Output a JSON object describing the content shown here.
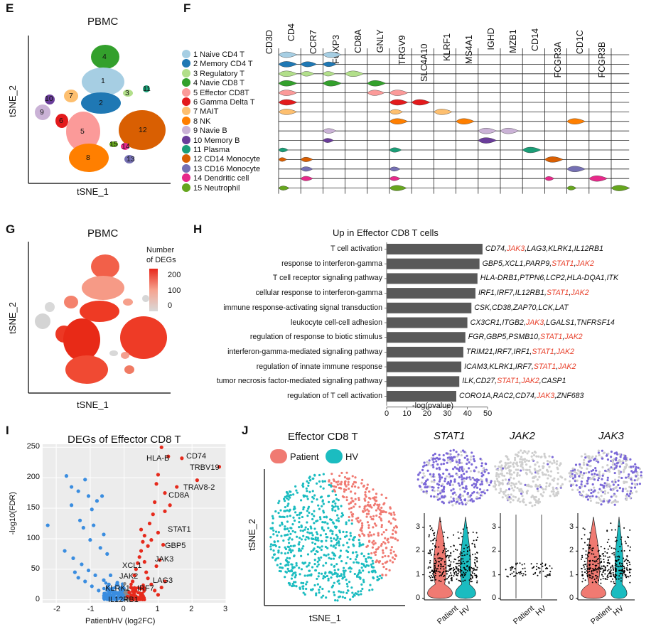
{
  "panel_labels": {
    "E": "E",
    "F": "F",
    "G": "G",
    "H": "H",
    "I": "I",
    "J": "J"
  },
  "E": {
    "title": "PBMC",
    "xlabel": "tSNE_1",
    "ylabel": "tSNE_2",
    "cluster_numbers": [
      "1",
      "2",
      "3",
      "4",
      "5",
      "6",
      "7",
      "8",
      "9",
      "10",
      "11",
      "12",
      "13",
      "14",
      "15"
    ]
  },
  "F": {
    "genes": [
      "CD3D",
      "CD4",
      "CCR7",
      "FOXP3",
      "CD8A",
      "GNLY",
      "TRGV9",
      "SLC4A10",
      "KLRF1",
      "MS4A1",
      "IGHD",
      "MZB1",
      "CD14",
      "FCGR3A",
      "CD1C",
      "FCGR3B"
    ],
    "legend": [
      {
        "label": "1 Naive CD4 T",
        "color": "#a6cee3"
      },
      {
        "label": "2 Memory CD4 T",
        "color": "#1f78b4"
      },
      {
        "label": "3 Regulatory T",
        "color": "#b2df8a"
      },
      {
        "label": "4 Navie CD8 T",
        "color": "#33a02c"
      },
      {
        "label": "5 Effector CD8T",
        "color": "#fb9a99"
      },
      {
        "label": "6 Gamma Delta T",
        "color": "#e31a1c"
      },
      {
        "label": "7 MAIT",
        "color": "#fdbf6f"
      },
      {
        "label": "8 NK",
        "color": "#ff7f00"
      },
      {
        "label": "9 Navie B",
        "color": "#cab2d6"
      },
      {
        "label": "10 Memory B",
        "color": "#6a3d9a"
      },
      {
        "label": "11 Plasma",
        "color": "#1b9e77"
      },
      {
        "label": "12 CD14 Monocyte",
        "color": "#d95f02"
      },
      {
        "label": "13 CD16 Monocyte",
        "color": "#7570b3"
      },
      {
        "label": "14 Dendritic cell",
        "color": "#e7298a"
      },
      {
        "label": "15 Neutrophil",
        "color": "#66a61e"
      }
    ]
  },
  "G": {
    "title": "PBMC",
    "legend_title_1": "Number",
    "legend_title_2": "of DEGs",
    "legend_ticks": [
      "200",
      "100",
      "0"
    ],
    "xlabel": "tSNE_1",
    "ylabel": "tSNE_2"
  },
  "H": {
    "title": "Up in Effector CD8 T cells",
    "xlabel": "-log(pvalue)",
    "xticks": [
      "0",
      "10",
      "20",
      "30",
      "40",
      "50"
    ],
    "rows": [
      {
        "term": "T cell activation",
        "value": 47.5,
        "genes": [
          [
            "CD74,",
            0
          ],
          [
            "JAK3",
            1
          ],
          [
            ",LAG3,KLRK1,IL12RB1",
            0
          ]
        ]
      },
      {
        "term": "response to interferon-gamma",
        "value": 46,
        "genes": [
          [
            "GBP5,XCL1,PARP9,",
            0
          ],
          [
            "STAT1",
            1
          ],
          [
            ",",
            0
          ],
          [
            "JAK2",
            1
          ]
        ]
      },
      {
        "term": "T cell receptor signaling pathway",
        "value": 45,
        "genes": [
          [
            "HLA-DRB1,PTPN6,LCP2,HLA-DQA1,ITK",
            0
          ]
        ]
      },
      {
        "term": "cellular response to interferon-gamma",
        "value": 44,
        "genes": [
          [
            "IRF1,IRF7,IL12RB1,",
            0
          ],
          [
            "STAT1",
            1
          ],
          [
            ",",
            0
          ],
          [
            "JAK2",
            1
          ]
        ]
      },
      {
        "term": "immune response-activating signal transduction",
        "value": 42,
        "genes": [
          [
            "CSK,CD38,ZAP70,LCK,LAT",
            0
          ]
        ]
      },
      {
        "term": "leukocyte cell-cell adhesion",
        "value": 40,
        "genes": [
          [
            "CX3CR1,ITGB2,",
            0
          ],
          [
            "JAK3",
            1
          ],
          [
            ",LGALS1,TNFRSF14",
            0
          ]
        ]
      },
      {
        "term": "regulation of response to biotic stimulus",
        "value": 39,
        "genes": [
          [
            "FGR,GBP5,PSMB10,",
            0
          ],
          [
            "STAT1",
            1
          ],
          [
            ",",
            0
          ],
          [
            "JAK2",
            1
          ]
        ]
      },
      {
        "term": "interferon-gamma-mediated signaling pathway",
        "value": 38,
        "genes": [
          [
            "TRIM21,IRF7,IRF1,",
            0
          ],
          [
            "STAT1",
            1
          ],
          [
            ",",
            0
          ],
          [
            "JAK2",
            1
          ]
        ]
      },
      {
        "term": "regulation of innate immune response",
        "value": 37,
        "genes": [
          [
            "ICAM3,KLRK1,IRF7,",
            0
          ],
          [
            "STAT1",
            1
          ],
          [
            ",",
            0
          ],
          [
            "JAK2",
            1
          ]
        ]
      },
      {
        "term": "tumor necrosis factor-mediated signaling pathway",
        "value": 36,
        "genes": [
          [
            "ILK,CD27,",
            0
          ],
          [
            "STAT1",
            1
          ],
          [
            ",",
            0
          ],
          [
            "JAK2",
            1
          ],
          [
            ",CASP1",
            0
          ]
        ]
      },
      {
        "term": "regulation of T cell activation",
        "value": 34.5,
        "genes": [
          [
            "CORO1A,RAC2,CD74,",
            0
          ],
          [
            "JAK3",
            1
          ],
          [
            ",ZNF683",
            0
          ]
        ]
      }
    ]
  },
  "I": {
    "title": "DEGs of Effector CD8 T",
    "xlabel": "Patient/HV (log2FC)",
    "ylabel": "-log10(FDR)",
    "xticks": [
      "-2",
      "-1",
      "0",
      "1",
      "2",
      "3"
    ],
    "yticks": [
      "0",
      "50",
      "100",
      "150",
      "200",
      "250"
    ],
    "gene_labels": [
      "HLA-B",
      "CD74",
      "TRBV19",
      "TRAV8-2",
      "CD8A",
      "STAT1",
      "GBP5",
      "JAK3",
      "XCL1",
      "LAG3",
      "JAK2",
      "KLRK1",
      "IRF7",
      "IL12RB1"
    ]
  },
  "J": {
    "title": "Effector CD8 T",
    "legend": [
      {
        "label": "Patient",
        "color": "#f07a72"
      },
      {
        "label": "HV",
        "color": "#1bbcc0"
      }
    ],
    "xlabel": "tSNE_1",
    "ylabel": "tSNE_2",
    "genes": [
      "STAT1",
      "JAK2",
      "JAK3"
    ],
    "violin_x": [
      "Patient",
      "HV"
    ],
    "violin_yticks": [
      "0",
      "1",
      "2",
      "3"
    ]
  },
  "chart_data": [
    {
      "type": "bar",
      "title": "Up in Effector CD8 T cells",
      "xlabel": "-log(pvalue)",
      "xlim": [
        0,
        50
      ],
      "categories": [
        "T cell activation",
        "response to interferon-gamma",
        "T cell receptor signaling pathway",
        "cellular response to interferon-gamma",
        "immune response-activating signal transduction",
        "leukocyte cell-cell adhesion",
        "regulation of response to biotic stimulus",
        "interferon-gamma-mediated signaling pathway",
        "regulation of innate immune response",
        "tumor necrosis factor-mediated signaling pathway",
        "regulation of T cell activation"
      ],
      "values": [
        47.5,
        46,
        45,
        44,
        42,
        40,
        39,
        38,
        37,
        36,
        34.5
      ]
    },
    {
      "type": "scatter",
      "title": "DEGs of Effector CD8 T",
      "xlabel": "Patient/HV (log2FC)",
      "ylabel": "-log10(FDR)",
      "xlim": [
        -2.4,
        3
      ],
      "ylim": [
        -5,
        255
      ],
      "series": [
        {
          "name": "down",
          "color": "#3a8de0",
          "points": [
            [
              -2.25,
              122
            ],
            [
              -1.7,
              203
            ],
            [
              -1.55,
              185
            ],
            [
              -1.35,
              178
            ],
            [
              -1.15,
              197
            ],
            [
              -1.05,
              170
            ],
            [
              -0.95,
              148
            ],
            [
              -0.8,
              162
            ],
            [
              -0.65,
              170
            ],
            [
              -1.55,
              155
            ],
            [
              -1.3,
              130
            ],
            [
              -1.2,
              118
            ],
            [
              -0.9,
              122
            ],
            [
              -0.6,
              107
            ],
            [
              -1.0,
              98
            ],
            [
              -0.7,
              85
            ],
            [
              -0.5,
              75
            ],
            [
              -1.75,
              80
            ],
            [
              -1.5,
              68
            ],
            [
              -1.25,
              58
            ],
            [
              -1.05,
              48
            ],
            [
              -0.85,
              40
            ],
            [
              -0.6,
              32
            ],
            [
              -0.45,
              25
            ],
            [
              -0.35,
              18
            ],
            [
              -0.25,
              12
            ],
            [
              -0.15,
              6
            ],
            [
              -0.3,
              3
            ],
            [
              -0.55,
              10
            ],
            [
              -0.75,
              15
            ],
            [
              -0.95,
              22
            ],
            [
              -1.15,
              30
            ],
            [
              -1.35,
              36
            ],
            [
              -0.4,
              40
            ],
            [
              -0.2,
              28
            ],
            [
              -1.45,
              45
            ]
          ]
        },
        {
          "name": "up",
          "color": "#e62a1c",
          "points": [
            [
              1.1,
              250
            ],
            [
              1.7,
              232
            ],
            [
              2.8,
              218
            ],
            [
              2.15,
              196
            ],
            [
              1.55,
              185
            ],
            [
              1.2,
              175
            ],
            [
              0.9,
              160
            ],
            [
              0.85,
              140
            ],
            [
              0.75,
              125
            ],
            [
              1.0,
              110
            ],
            [
              0.6,
              105
            ],
            [
              0.55,
              95
            ],
            [
              0.5,
              80
            ],
            [
              0.45,
              70
            ],
            [
              0.4,
              60
            ],
            [
              0.35,
              50
            ],
            [
              0.3,
              40
            ],
            [
              0.25,
              30
            ],
            [
              0.2,
              20
            ],
            [
              0.15,
              12
            ],
            [
              0.1,
              5
            ],
            [
              0.65,
              45
            ],
            [
              0.7,
              35
            ],
            [
              0.8,
              25
            ],
            [
              0.9,
              15
            ],
            [
              1.0,
              8
            ],
            [
              1.1,
              20
            ],
            [
              1.2,
              30
            ],
            [
              0.95,
              55
            ],
            [
              1.05,
              65
            ],
            [
              0.7,
              88
            ],
            [
              0.8,
              98
            ],
            [
              1.2,
              145
            ],
            [
              1.35,
              155
            ],
            [
              1.0,
              205
            ],
            [
              0.95,
              190
            ],
            [
              1.3,
              235
            ],
            [
              0.6,
              62
            ],
            [
              0.5,
              115
            ],
            [
              1.15,
              90
            ]
          ]
        }
      ]
    }
  ]
}
